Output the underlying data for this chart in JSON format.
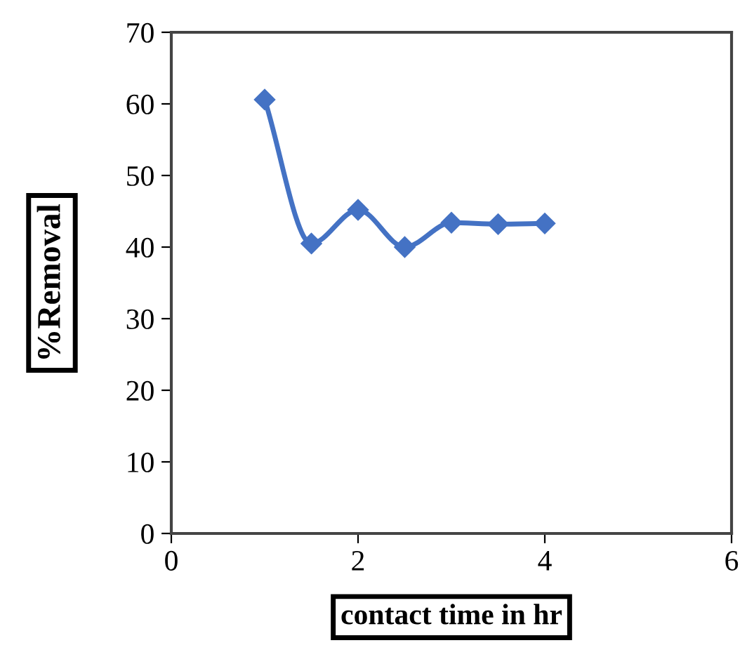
{
  "chart_data": {
    "type": "line",
    "xlabel": "contact time in hr",
    "ylabel": "%Removal",
    "x": [
      1,
      1.5,
      2,
      2.5,
      3,
      3.5,
      4
    ],
    "series": [
      {
        "color": "#4472c4",
        "values": [
          60.6,
          40.5,
          45.2,
          40.0,
          43.4,
          43.2,
          43.3
        ]
      }
    ],
    "xlim": [
      0,
      6
    ],
    "xticks": [
      0,
      2,
      4,
      6
    ],
    "ylim": [
      0,
      70
    ],
    "yticks": [
      0,
      10,
      20,
      30,
      40,
      50,
      60,
      70
    ],
    "marker": "diamond",
    "line_style": "solid",
    "grid": false,
    "legend": false
  }
}
